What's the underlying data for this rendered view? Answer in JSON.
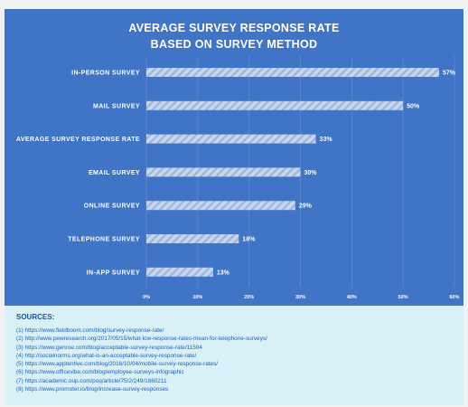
{
  "chart_data": {
    "type": "bar",
    "orientation": "horizontal",
    "title": [
      "AVERAGE SURVEY RESPONSE RATE",
      "BASED ON SURVEY METHOD"
    ],
    "categories": [
      "IN-PERSON SURVEY",
      "MAIL SURVEY",
      "AVERAGE SURVEY RESPONSE RATE",
      "EMAIL SURVEY",
      "ONLINE SURVEY",
      "TELEPHONE SURVEY",
      "IN-APP SURVEY"
    ],
    "values": [
      57,
      50,
      33,
      30,
      29,
      18,
      13
    ],
    "data_labels": [
      "57%",
      "50%",
      "33%",
      "30%",
      "29%",
      "18%",
      "13%"
    ],
    "x_ticks": [
      "0%",
      "10%",
      "20%",
      "30%",
      "40%",
      "50%",
      "60%"
    ],
    "xlim": [
      0,
      60
    ],
    "xlabel": "",
    "ylabel": "",
    "grid": true,
    "colors": {
      "panel": "#3f74c6",
      "bar": "#c9d7ee",
      "bar_stripe": "#9db4dd",
      "text": "#ffffff",
      "grid": "#5f8ad0"
    }
  },
  "sources": {
    "heading": "SOURCES:",
    "items": [
      "(1) https://www.fieldboom.com/blog/survey-response-rate/",
      "(2) http://www.pewresearch.org/2017/05/15/what-low-response-rates-mean-for-telephone-surveys/",
      "(3) https://www.genroe.com/blog/acceptable-survey-response-rate/11504",
      "(4) http://socialnorms.org/what-is-an-acceptable-survey-response-rate/",
      "(5) https://www.apptentive.com/blog/2016/10/04/mobile-survey-response-rates/",
      "(6) https://www.officevibe.com/blog/employee-surveys-infographic",
      "(7) https://academic.oup.com/poq/article/75/2/249/1860211",
      "(8) https://www.promoter.io/blog/increase-survey-responses"
    ]
  }
}
